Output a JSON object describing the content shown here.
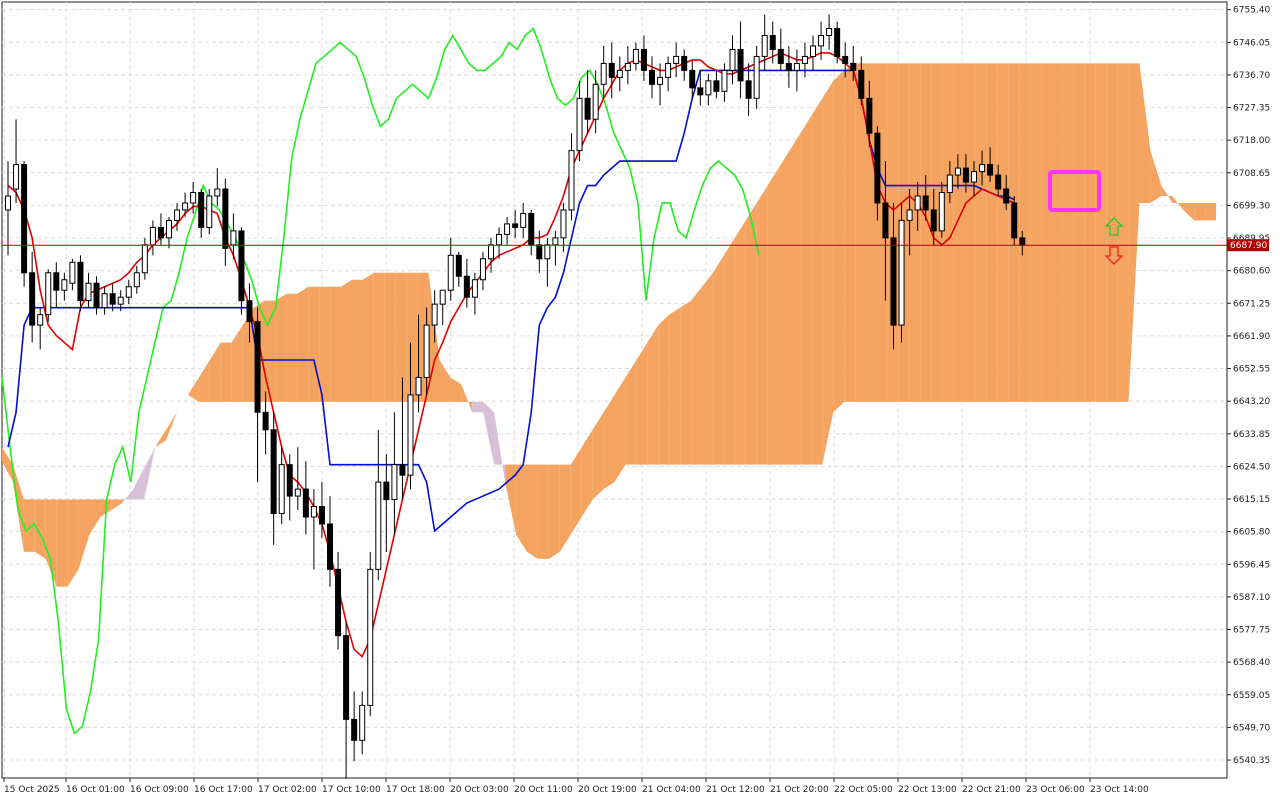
{
  "chart_data": {
    "type": "line",
    "subtype": "candlestick-with-ichimoku",
    "title": "",
    "xlabel": "",
    "ylabel": "",
    "ylim": [
      6535.2,
      6757.6
    ],
    "grid": true,
    "colors": {
      "background": "#ffffff",
      "grid": "#dcdcdc",
      "axis": "#222222",
      "bull_candle": "#ffffff",
      "bear_candle": "#000000",
      "tenkan": "#e00000",
      "kijun": "#0010cc",
      "chikou": "#22ee22",
      "kumo_bull": "#f4a460",
      "kumo_bear": "#d8bfd8",
      "price_line": "#b00000",
      "price_tag": "#b00000",
      "highlight_box": "#ff33ff",
      "arrow_up": "#22cc22",
      "arrow_down": "#ee2222"
    },
    "y_ticks": [
      "6755.40",
      "6746.05",
      "6736.70",
      "6727.35",
      "6718.00",
      "6708.65",
      "6699.30",
      "6689.95",
      "6680.60",
      "6671.25",
      "6661.90",
      "6652.55",
      "6643.20",
      "6633.85",
      "6624.50",
      "6615.15",
      "6605.80",
      "6596.45",
      "6587.10",
      "6577.75",
      "6568.40",
      "6559.05",
      "6549.70",
      "6540.35"
    ],
    "x_ticks": [
      "15 Oct 2025",
      "16 Oct 01:00",
      "16 Oct 09:00",
      "16 Oct 17:00",
      "17 Oct 02:00",
      "17 Oct 10:00",
      "17 Oct 18:00",
      "20 Oct 03:00",
      "20 Oct 11:00",
      "20 Oct 19:00",
      "21 Oct 04:00",
      "21 Oct 12:00",
      "21 Oct 20:00",
      "22 Oct 05:00",
      "22 Oct 13:00",
      "22 Oct 21:00",
      "23 Oct 06:00",
      "23 Oct 14:00"
    ],
    "current_price": 6687.9,
    "current_price_label": "6687.90",
    "candles": [
      [
        6698.0,
        6712.0,
        6685.0,
        6702.0
      ],
      [
        6704.0,
        6724.0,
        6700.0,
        6711.0
      ],
      [
        6711.0,
        6712.0,
        6676.0,
        6680.0
      ],
      [
        6680.0,
        6686.0,
        6660.0,
        6665.0
      ],
      [
        6665.0,
        6670.0,
        6658.0,
        6668.0
      ],
      [
        6668.0,
        6681.0,
        6666.0,
        6680.0
      ],
      [
        6680.0,
        6683.0,
        6670.0,
        6675.0
      ],
      [
        6675.0,
        6680.0,
        6672.0,
        6678.0
      ],
      [
        6677.0,
        6684.0,
        6675.0,
        6683.0
      ],
      [
        6683.0,
        6685.0,
        6669.0,
        6672.0
      ],
      [
        6672.0,
        6680.0,
        6670.0,
        6677.0
      ],
      [
        6677.0,
        6679.0,
        6668.0,
        6670.0
      ],
      [
        6670.0,
        6676.0,
        6668.0,
        6674.0
      ],
      [
        6674.0,
        6677.0,
        6669.0,
        6671.0
      ],
      [
        6671.0,
        6675.0,
        6669.0,
        6673.0
      ],
      [
        6673.0,
        6678.0,
        6671.0,
        6676.0
      ],
      [
        6676.0,
        6682.0,
        6674.0,
        6680.0
      ],
      [
        6680.0,
        6690.0,
        6678.0,
        6688.0
      ],
      [
        6688.0,
        6695.0,
        6685.0,
        6693.0
      ],
      [
        6693.0,
        6697.0,
        6688.0,
        6690.0
      ],
      [
        6690.0,
        6696.0,
        6687.0,
        6695.0
      ],
      [
        6695.0,
        6700.0,
        6692.0,
        6698.0
      ],
      [
        6698.0,
        6703.0,
        6696.0,
        6700.0
      ],
      [
        6700.0,
        6706.0,
        6697.0,
        6703.0
      ],
      [
        6703.0,
        6704.0,
        6690.0,
        6693.0
      ],
      [
        6693.0,
        6704.0,
        6691.0,
        6702.0
      ],
      [
        6702.0,
        6710.0,
        6699.0,
        6704.0
      ],
      [
        6704.0,
        6707.0,
        6682.0,
        6687.0
      ],
      [
        6688.0,
        6697.0,
        6684.0,
        6692.0
      ],
      [
        6692.0,
        6693.0,
        6668.0,
        6672.0
      ],
      [
        6672.0,
        6677.0,
        6660.0,
        6666.0
      ],
      [
        6666.0,
        6670.0,
        6620.0,
        6640.0
      ],
      [
        6640.0,
        6646.0,
        6628.0,
        6635.0
      ],
      [
        6635.0,
        6640.0,
        6602.0,
        6611.0
      ],
      [
        6611.0,
        6630.0,
        6608.0,
        6625.0
      ],
      [
        6625.0,
        6628.0,
        6609.0,
        6616.0
      ],
      [
        6616.0,
        6630.0,
        6612.0,
        6618.0
      ],
      [
        6618.0,
        6626.0,
        6605.0,
        6610.0
      ],
      [
        6610.0,
        6618.0,
        6595.0,
        6613.0
      ],
      [
        6613.0,
        6620.0,
        6604.0,
        6608.0
      ],
      [
        6608.0,
        6616.0,
        6590.0,
        6595.0
      ],
      [
        6595.0,
        6600.0,
        6572.0,
        6576.0
      ],
      [
        6576.0,
        6580.0,
        6535.0,
        6552.0
      ],
      [
        6552.0,
        6560.0,
        6540.0,
        6546.0
      ],
      [
        6546.0,
        6560.0,
        6542.0,
        6556.0
      ],
      [
        6556.0,
        6600.0,
        6553.0,
        6595.0
      ],
      [
        6595.0,
        6635.0,
        6592.0,
        6620.0
      ],
      [
        6620.0,
        6628.0,
        6600.0,
        6615.0
      ],
      [
        6615.0,
        6640.0,
        6605.0,
        6625.0
      ],
      [
        6625.0,
        6650.0,
        6615.0,
        6622.0
      ],
      [
        6622.0,
        6660.0,
        6618.0,
        6645.0
      ],
      [
        6645.0,
        6668.0,
        6640.0,
        6650.0
      ],
      [
        6650.0,
        6670.0,
        6645.0,
        6665.0
      ],
      [
        6665.0,
        6675.0,
        6660.0,
        6671.0
      ],
      [
        6671.0,
        6675.0,
        6665.0,
        6675.0
      ],
      [
        6675.0,
        6690.0,
        6672.0,
        6685.0
      ],
      [
        6685.0,
        6686.0,
        6676.0,
        6679.0
      ],
      [
        6679.0,
        6684.0,
        6670.0,
        6673.0
      ],
      [
        6673.0,
        6680.0,
        6668.0,
        6678.0
      ],
      [
        6678.0,
        6686.0,
        6675.0,
        6684.0
      ],
      [
        6684.0,
        6690.0,
        6680.0,
        6688.0
      ],
      [
        6688.0,
        6693.0,
        6684.0,
        6691.0
      ],
      [
        6691.0,
        6696.0,
        6688.0,
        6694.0
      ],
      [
        6694.0,
        6698.0,
        6690.0,
        6693.0
      ],
      [
        6693.0,
        6700.0,
        6690.0,
        6697.0
      ],
      [
        6697.0,
        6698.0,
        6685.0,
        6688.0
      ],
      [
        6688.0,
        6692.0,
        6680.0,
        6684.0
      ],
      [
        6684.0,
        6690.0,
        6676.0,
        6688.0
      ],
      [
        6688.0,
        6692.0,
        6682.0,
        6690.0
      ],
      [
        6690.0,
        6700.0,
        6686.0,
        6698.0
      ],
      [
        6698.0,
        6720.0,
        6695.0,
        6715.0
      ],
      [
        6715.0,
        6735.0,
        6712.0,
        6730.0
      ],
      [
        6730.0,
        6738.0,
        6720.0,
        6724.0
      ],
      [
        6724.0,
        6738.0,
        6720.0,
        6734.0
      ],
      [
        6734.0,
        6745.0,
        6730.0,
        6740.0
      ],
      [
        6740.0,
        6746.0,
        6730.0,
        6736.0
      ],
      [
        6736.0,
        6742.0,
        6732.0,
        6738.0
      ],
      [
        6738.0,
        6745.0,
        6734.0,
        6740.0
      ],
      [
        6740.0,
        6746.0,
        6738.0,
        6744.0
      ],
      [
        6744.0,
        6748.0,
        6735.0,
        6738.0
      ],
      [
        6738.0,
        6742.0,
        6730.0,
        6734.0
      ],
      [
        6734.0,
        6740.0,
        6728.0,
        6736.0
      ],
      [
        6736.0,
        6742.0,
        6732.0,
        6740.0
      ],
      [
        6740.0,
        6746.0,
        6736.0,
        6742.0
      ],
      [
        6742.0,
        6744.0,
        6735.0,
        6738.0
      ],
      [
        6738.0,
        6741.0,
        6730.0,
        6733.0
      ],
      [
        6733.0,
        6738.0,
        6728.0,
        6731.0
      ],
      [
        6731.0,
        6737.0,
        6728.0,
        6735.0
      ],
      [
        6735.0,
        6738.0,
        6730.0,
        6732.0
      ],
      [
        6732.0,
        6740.0,
        6729.0,
        6738.0
      ],
      [
        6738.0,
        6748.0,
        6734.0,
        6744.0
      ],
      [
        6744.0,
        6752.0,
        6730.0,
        6735.0
      ],
      [
        6735.0,
        6740.0,
        6725.0,
        6730.0
      ],
      [
        6730.0,
        6745.0,
        6727.0,
        6742.0
      ],
      [
        6742.0,
        6754.0,
        6738.0,
        6748.0
      ],
      [
        6748.0,
        6752.0,
        6740.0,
        6744.0
      ],
      [
        6744.0,
        6750.0,
        6738.0,
        6740.0
      ],
      [
        6740.0,
        6745.0,
        6733.0,
        6738.0
      ],
      [
        6738.0,
        6744.0,
        6732.0,
        6740.0
      ],
      [
        6740.0,
        6746.0,
        6736.0,
        6742.0
      ],
      [
        6742.0,
        6748.0,
        6738.0,
        6745.0
      ],
      [
        6745.0,
        6752.0,
        6741.0,
        6748.0
      ],
      [
        6748.0,
        6754.0,
        6744.0,
        6750.0
      ],
      [
        6750.0,
        6752.0,
        6740.0,
        6742.0
      ],
      [
        6742.0,
        6746.0,
        6736.0,
        6740.0
      ],
      [
        6740.0,
        6745.0,
        6735.0,
        6738.0
      ],
      [
        6738.0,
        6742.0,
        6728.0,
        6730.0
      ],
      [
        6730.0,
        6735.0,
        6716.0,
        6720.0
      ],
      [
        6720.0,
        6722.0,
        6695.0,
        6700.0
      ],
      [
        6700.0,
        6712.0,
        6672.0,
        6690.0
      ],
      [
        6690.0,
        6700.0,
        6658.0,
        6665.0
      ],
      [
        6665.0,
        6700.0,
        6660.0,
        6695.0
      ],
      [
        6695.0,
        6704.0,
        6685.0,
        6698.0
      ],
      [
        6698.0,
        6706.0,
        6692.0,
        6702.0
      ],
      [
        6702.0,
        6708.0,
        6695.0,
        6698.0
      ],
      [
        6698.0,
        6704.0,
        6688.0,
        6692.0
      ],
      [
        6692.0,
        6706.0,
        6690.0,
        6703.0
      ],
      [
        6703.0,
        6712.0,
        6700.0,
        6708.0
      ],
      [
        6708.0,
        6714.0,
        6704.0,
        6710.0
      ],
      [
        6710.0,
        6714.0,
        6703.0,
        6706.0
      ],
      [
        6706.0,
        6712.0,
        6702.0,
        6709.0
      ],
      [
        6709.0,
        6715.0,
        6705.0,
        6711.0
      ],
      [
        6711.0,
        6716.0,
        6706.0,
        6708.0
      ],
      [
        6708.0,
        6711.0,
        6702.0,
        6704.0
      ],
      [
        6704.0,
        6708.0,
        6698.0,
        6700.0
      ],
      [
        6700.0,
        6702.0,
        6688.0,
        6690.0
      ],
      [
        6690.0,
        6692.0,
        6685.0,
        6687.9
      ]
    ],
    "tenkan_sen": [
      6705,
      6703,
      6698,
      6690,
      6675,
      6665,
      6662,
      6660,
      6658,
      6670,
      6674,
      6675,
      6676,
      6677,
      6678,
      6680,
      6683,
      6685,
      6688,
      6690,
      6692,
      6694,
      6697,
      6699,
      6699,
      6698,
      6697,
      6690,
      6685,
      6678,
      6670,
      6662,
      6650,
      6640,
      6630,
      6622,
      6620,
      6617,
      6613,
      6608,
      6600,
      6590,
      6580,
      6572,
      6570,
      6575,
      6585,
      6595,
      6605,
      6615,
      6625,
      6635,
      6645,
      6655,
      6660,
      6666,
      6670,
      6674,
      6677,
      6680,
      6683,
      6685,
      6686,
      6687,
      6688,
      6690,
      6690,
      6691,
      6696,
      6702,
      6710,
      6715,
      6720,
      6725,
      6730,
      6734,
      6738,
      6740,
      6741,
      6740,
      6739,
      6738,
      6738,
      6739,
      6740,
      6741,
      6741,
      6739,
      6738,
      6737,
      6737,
      6738,
      6739,
      6740,
      6741,
      6742,
      6743,
      6742,
      6741,
      6741,
      6742,
      6743,
      6743,
      6742,
      6740,
      6738,
      6730,
      6718,
      6705,
      6700,
      6698,
      6700,
      6702,
      6700,
      6696,
      6690,
      6688,
      6690,
      6695,
      6700,
      6702,
      6704,
      6703,
      6702,
      6701,
      6700
    ],
    "kijun_sen": [
      6630,
      6640,
      6665,
      6670,
      6670,
      6670,
      6670,
      6670,
      6670,
      6670,
      6670,
      6670,
      6670,
      6670,
      6670,
      6670,
      6670,
      6670,
      6670,
      6670,
      6670,
      6670,
      6670,
      6670,
      6670,
      6670,
      6670,
      6670,
      6670,
      6670,
      6670,
      6655,
      6655,
      6655,
      6655,
      6655,
      6655,
      6655,
      6655,
      6645,
      6625,
      6625,
      6625,
      6625,
      6625,
      6625,
      6625,
      6625,
      6625,
      6625,
      6625,
      6625,
      6620,
      6606,
      6608,
      6610,
      6612,
      6614,
      6615,
      6616,
      6617,
      6618,
      6620,
      6622,
      6625,
      6640,
      6665,
      6670,
      6673,
      6680,
      6690,
      6700,
      6705,
      6705,
      6708,
      6710,
      6712,
      6712,
      6712,
      6712,
      6712,
      6712,
      6712,
      6712,
      6720,
      6730,
      6738,
      6738,
      6738,
      6738,
      6738,
      6738,
      6738,
      6738,
      6738,
      6738,
      6738,
      6738,
      6738,
      6738,
      6738,
      6738,
      6738,
      6738,
      6738,
      6738,
      6730,
      6718,
      6710,
      6705,
      6705,
      6705,
      6705,
      6705,
      6705,
      6705,
      6705,
      6705,
      6705,
      6705,
      6705,
      6704,
      6703,
      6702,
      6702,
      6701
    ],
    "chikou_span": [
      6650,
      6630,
      6612,
      6606,
      6608,
      6604,
      6598,
      6580,
      6555,
      6548,
      6550,
      6560,
      6575,
      6615,
      6625,
      6630,
      6620,
      6640,
      6650,
      6660,
      6670,
      6672,
      6680,
      6690,
      6697,
      6705,
      6700,
      6698,
      6694,
      6690,
      6684,
      6678,
      6670,
      6665,
      6670,
      6690,
      6713,
      6724,
      6732,
      6740,
      6742,
      6744,
      6746,
      6744,
      6742,
      6736,
      6728,
      6722,
      6724,
      6730,
      6732,
      6734,
      6732,
      6730,
      6736,
      6744,
      6748,
      6744,
      6740,
      6738,
      6738,
      6740,
      6742,
      6746,
      6744,
      6748,
      6750,
      6744,
      6736,
      6730,
      6728,
      6730,
      6736,
      6738,
      6734,
      6728,
      6720,
      6715,
      6710,
      6700,
      6672,
      6690,
      6700,
      6700,
      6692,
      6690,
      6698,
      6705,
      6710,
      6712,
      6710,
      6708,
      6704,
      6696,
      6685
    ],
    "kumo": [
      [
        6630,
        6625,
        6615,
        6615,
        6615,
        6615,
        6615,
        6615,
        6615,
        6615,
        6615,
        6615,
        6615,
        6615,
        6630,
        6635,
        6640,
        6645,
        6650,
        6655,
        6660,
        6660,
        6665,
        6670,
        6672,
        6672,
        6674,
        6674,
        6676,
        6676,
        6676,
        6676,
        6678,
        6678,
        6680,
        6680,
        6680,
        6680,
        6680,
        6680,
        6655,
        6650,
        6648,
        6640,
        6640,
        6625,
        6625,
        6625,
        6625,
        6625,
        6625,
        6625,
        6625,
        6630,
        6635,
        6640,
        6645,
        6650,
        6655,
        6660,
        6665,
        6668,
        6670,
        6672,
        6676,
        6680,
        6685,
        6690,
        6695,
        6700,
        6705,
        6710,
        6715,
        6720,
        6725,
        6730,
        6735,
        6738,
        6740,
        6740,
        6740,
        6740,
        6740,
        6740,
        6740,
        6740,
        6740,
        6740,
        6740,
        6740,
        6740,
        6740,
        6740,
        6740,
        6740,
        6740,
        6740,
        6740,
        6740,
        6740,
        6740,
        6740,
        6740,
        6740,
        6740,
        6715,
        6705,
        6700,
        6700,
        6700,
        6700,
        6700
      ],
      [
        6626,
        6620,
        6600,
        6600,
        6598,
        6590,
        6590,
        6595,
        6605,
        6610,
        6612,
        6614,
        6618,
        6624,
        6630,
        6632,
        6640,
        6645,
        6643,
        6643,
        6643,
        6643,
        6643,
        6643,
        6643,
        6643,
        6643,
        6643,
        6643,
        6643,
        6643,
        6643,
        6643,
        6643,
        6643,
        6643,
        6643,
        6643,
        6643,
        6643,
        6643,
        6643,
        6643,
        6643,
        6643,
        6640,
        6620,
        6605,
        6600,
        6598,
        6598,
        6600,
        6605,
        6610,
        6615,
        6618,
        6620,
        6625,
        6625,
        6625,
        6625,
        6625,
        6625,
        6625,
        6625,
        6625,
        6625,
        6625,
        6625,
        6625,
        6625,
        6625,
        6625,
        6625,
        6625,
        6625,
        6640,
        6643,
        6643,
        6643,
        6643,
        6643,
        6643,
        6643,
        6643,
        6643,
        6643,
        6643,
        6643,
        6643,
        6643,
        6643,
        6643,
        6643,
        6643,
        6643,
        6643,
        6643,
        6643,
        6643,
        6643,
        6643,
        6643,
        6643,
        6700,
        6700,
        6702,
        6702,
        6698,
        6695,
        6695,
        6695
      ]
    ]
  }
}
